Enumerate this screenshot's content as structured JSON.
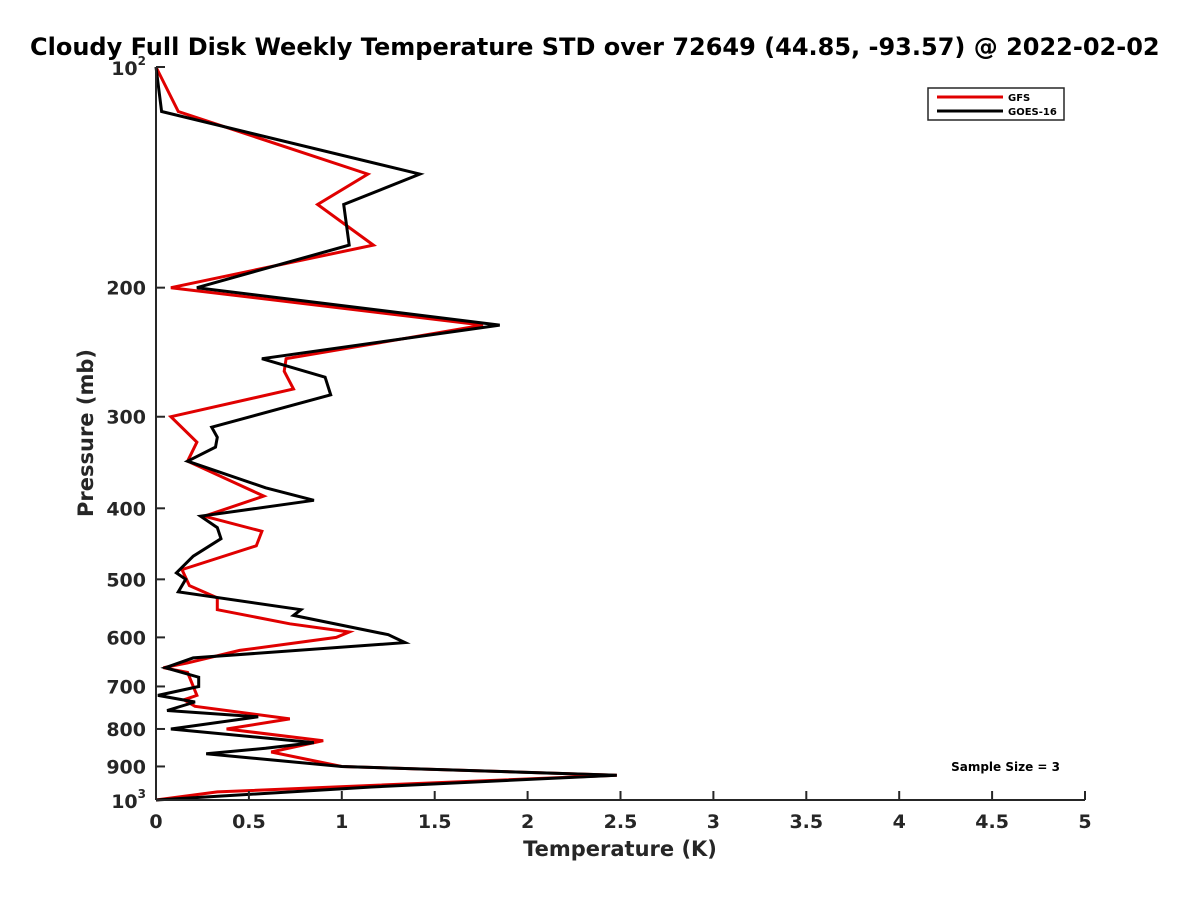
{
  "chart_data": {
    "type": "line",
    "title": "Cloudy Full Disk Weekly Temperature STD over 72649 (44.85, -93.57) @ 2022-02-02",
    "xlabel": "Temperature (K)",
    "ylabel": "Pressure (mb)",
    "xlim": [
      0,
      5
    ],
    "ylim": [
      100,
      1000
    ],
    "y_scale": "log",
    "y_reversed": true,
    "x_ticks": [
      "0",
      "0.5",
      "1",
      "1.5",
      "2",
      "2.5",
      "3",
      "3.5",
      "4",
      "4.5",
      "5"
    ],
    "y_ticks": [
      {
        "value": 100,
        "base": "10",
        "exp": "2"
      },
      {
        "value": 200,
        "label": "200"
      },
      {
        "value": 300,
        "label": "300"
      },
      {
        "value": 400,
        "label": "400"
      },
      {
        "value": 500,
        "label": "500"
      },
      {
        "value": 600,
        "label": "600"
      },
      {
        "value": 700,
        "label": "700"
      },
      {
        "value": 800,
        "label": "800"
      },
      {
        "value": 900,
        "label": "900"
      },
      {
        "value": 1000,
        "base": "10",
        "exp": "3"
      }
    ],
    "grid": false,
    "legend_position": "top-right",
    "annotation": "Sample Size = 3",
    "series": [
      {
        "name": "GFS",
        "color": "#e00000",
        "points": [
          [
            0.0,
            100
          ],
          [
            0.12,
            115
          ],
          [
            1.14,
            140
          ],
          [
            0.87,
            154
          ],
          [
            1.17,
            175
          ],
          [
            0.08,
            200
          ],
          [
            1.76,
            225
          ],
          [
            0.7,
            250
          ],
          [
            0.69,
            260
          ],
          [
            0.74,
            275
          ],
          [
            0.08,
            300
          ],
          [
            0.22,
            325
          ],
          [
            0.17,
            345
          ],
          [
            0.58,
            385
          ],
          [
            0.26,
            410
          ],
          [
            0.57,
            430
          ],
          [
            0.54,
            450
          ],
          [
            0.14,
            485
          ],
          [
            0.18,
            510
          ],
          [
            0.33,
            530
          ],
          [
            0.33,
            550
          ],
          [
            0.72,
            575
          ],
          [
            1.04,
            590
          ],
          [
            0.97,
            600
          ],
          [
            0.45,
            625
          ],
          [
            0.17,
            650
          ],
          [
            0.04,
            660
          ],
          [
            0.17,
            670
          ],
          [
            0.22,
            720
          ],
          [
            0.15,
            730
          ],
          [
            0.21,
            745
          ],
          [
            0.72,
            775
          ],
          [
            0.38,
            800
          ],
          [
            0.9,
            830
          ],
          [
            0.62,
            860
          ],
          [
            1.0,
            900
          ],
          [
            2.48,
            925
          ],
          [
            0.33,
            975
          ],
          [
            0.0,
            1000
          ]
        ]
      },
      {
        "name": "GOES-16",
        "color": "#000000",
        "points": [
          [
            0.0,
            100
          ],
          [
            0.03,
            115
          ],
          [
            1.42,
            140
          ],
          [
            1.01,
            154
          ],
          [
            1.04,
            175
          ],
          [
            0.22,
            200
          ],
          [
            1.85,
            225
          ],
          [
            0.57,
            250
          ],
          [
            0.91,
            265
          ],
          [
            0.94,
            280
          ],
          [
            0.3,
            310
          ],
          [
            0.33,
            320
          ],
          [
            0.32,
            330
          ],
          [
            0.17,
            345
          ],
          [
            0.59,
            375
          ],
          [
            0.85,
            390
          ],
          [
            0.24,
            410
          ],
          [
            0.33,
            425
          ],
          [
            0.35,
            440
          ],
          [
            0.2,
            465
          ],
          [
            0.11,
            490
          ],
          [
            0.16,
            500
          ],
          [
            0.12,
            520
          ],
          [
            0.78,
            550
          ],
          [
            0.74,
            560
          ],
          [
            1.25,
            595
          ],
          [
            1.34,
            610
          ],
          [
            0.2,
            640
          ],
          [
            0.05,
            660
          ],
          [
            0.23,
            680
          ],
          [
            0.23,
            700
          ],
          [
            0.01,
            720
          ],
          [
            0.21,
            735
          ],
          [
            0.06,
            755
          ],
          [
            0.55,
            770
          ],
          [
            0.08,
            800
          ],
          [
            0.85,
            835
          ],
          [
            0.59,
            850
          ],
          [
            0.27,
            865
          ],
          [
            1.0,
            900
          ],
          [
            2.48,
            925
          ],
          [
            1.16,
            960
          ],
          [
            0.0,
            1000
          ]
        ]
      }
    ]
  }
}
